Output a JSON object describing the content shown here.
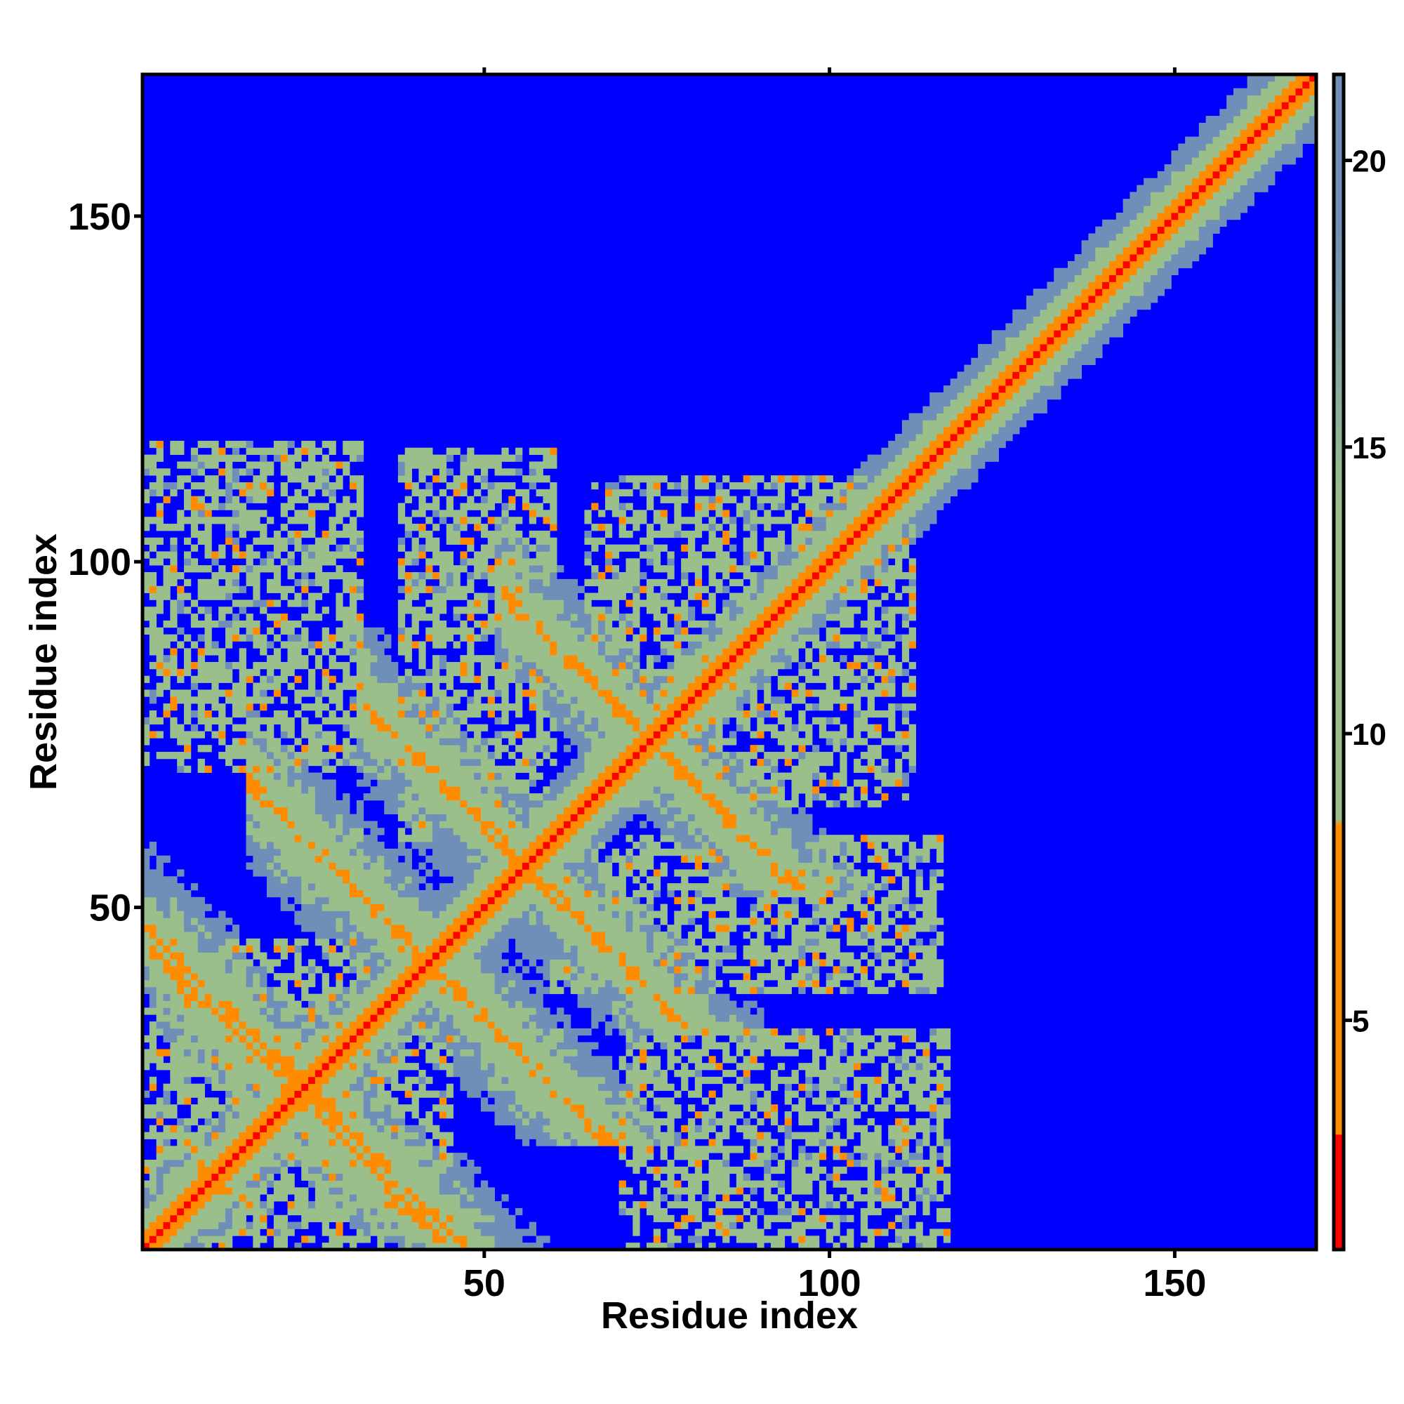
{
  "chart_data": {
    "type": "heatmap",
    "xlabel": "Residue index",
    "ylabel": "Residue index",
    "xlim": [
      1,
      170
    ],
    "ylim": [
      1,
      170
    ],
    "x_ticks": [
      50,
      100,
      150
    ],
    "y_ticks": [
      50,
      100,
      150
    ],
    "colorbar": {
      "range": [
        1,
        21.5
      ],
      "ticks": [
        5,
        10,
        15,
        20
      ],
      "colors": [
        "#ff0000",
        "#ff8c00",
        "#9bbf8a",
        "#6f8fb8",
        "#0000ff"
      ]
    },
    "background_value": 21.5,
    "background_color": "#0000ff",
    "structure": {
      "diagonal": "contact distance rises from ~1 on the main diagonal to ~20 away from it",
      "regions": [
        {
          "x": [
            1,
            45
          ],
          "y": [
            1,
            45
          ],
          "pattern": "cross-strand contacts near diagonal"
        },
        {
          "x": [
            1,
            32
          ],
          "y": [
            70,
            115
          ],
          "pattern": "patchy contact clusters"
        },
        {
          "x": [
            38,
            60
          ],
          "y": [
            60,
            113
          ],
          "pattern": "antiparallel contact stripe"
        },
        {
          "x": [
            65,
            112
          ],
          "y": [
            66,
            108
          ],
          "pattern": "X-shaped contact cluster"
        },
        {
          "x": [
            72,
            116
          ],
          "y": [
            38,
            60
          ],
          "pattern": "patchy contact cluster"
        },
        {
          "x": [
            70,
            117
          ],
          "y": [
            1,
            32
          ],
          "pattern": "patchy contact cluster"
        },
        {
          "x": [
            88,
            170
          ],
          "y": [
            88,
            170
          ],
          "pattern": "broad band along diagonal"
        }
      ]
    }
  }
}
